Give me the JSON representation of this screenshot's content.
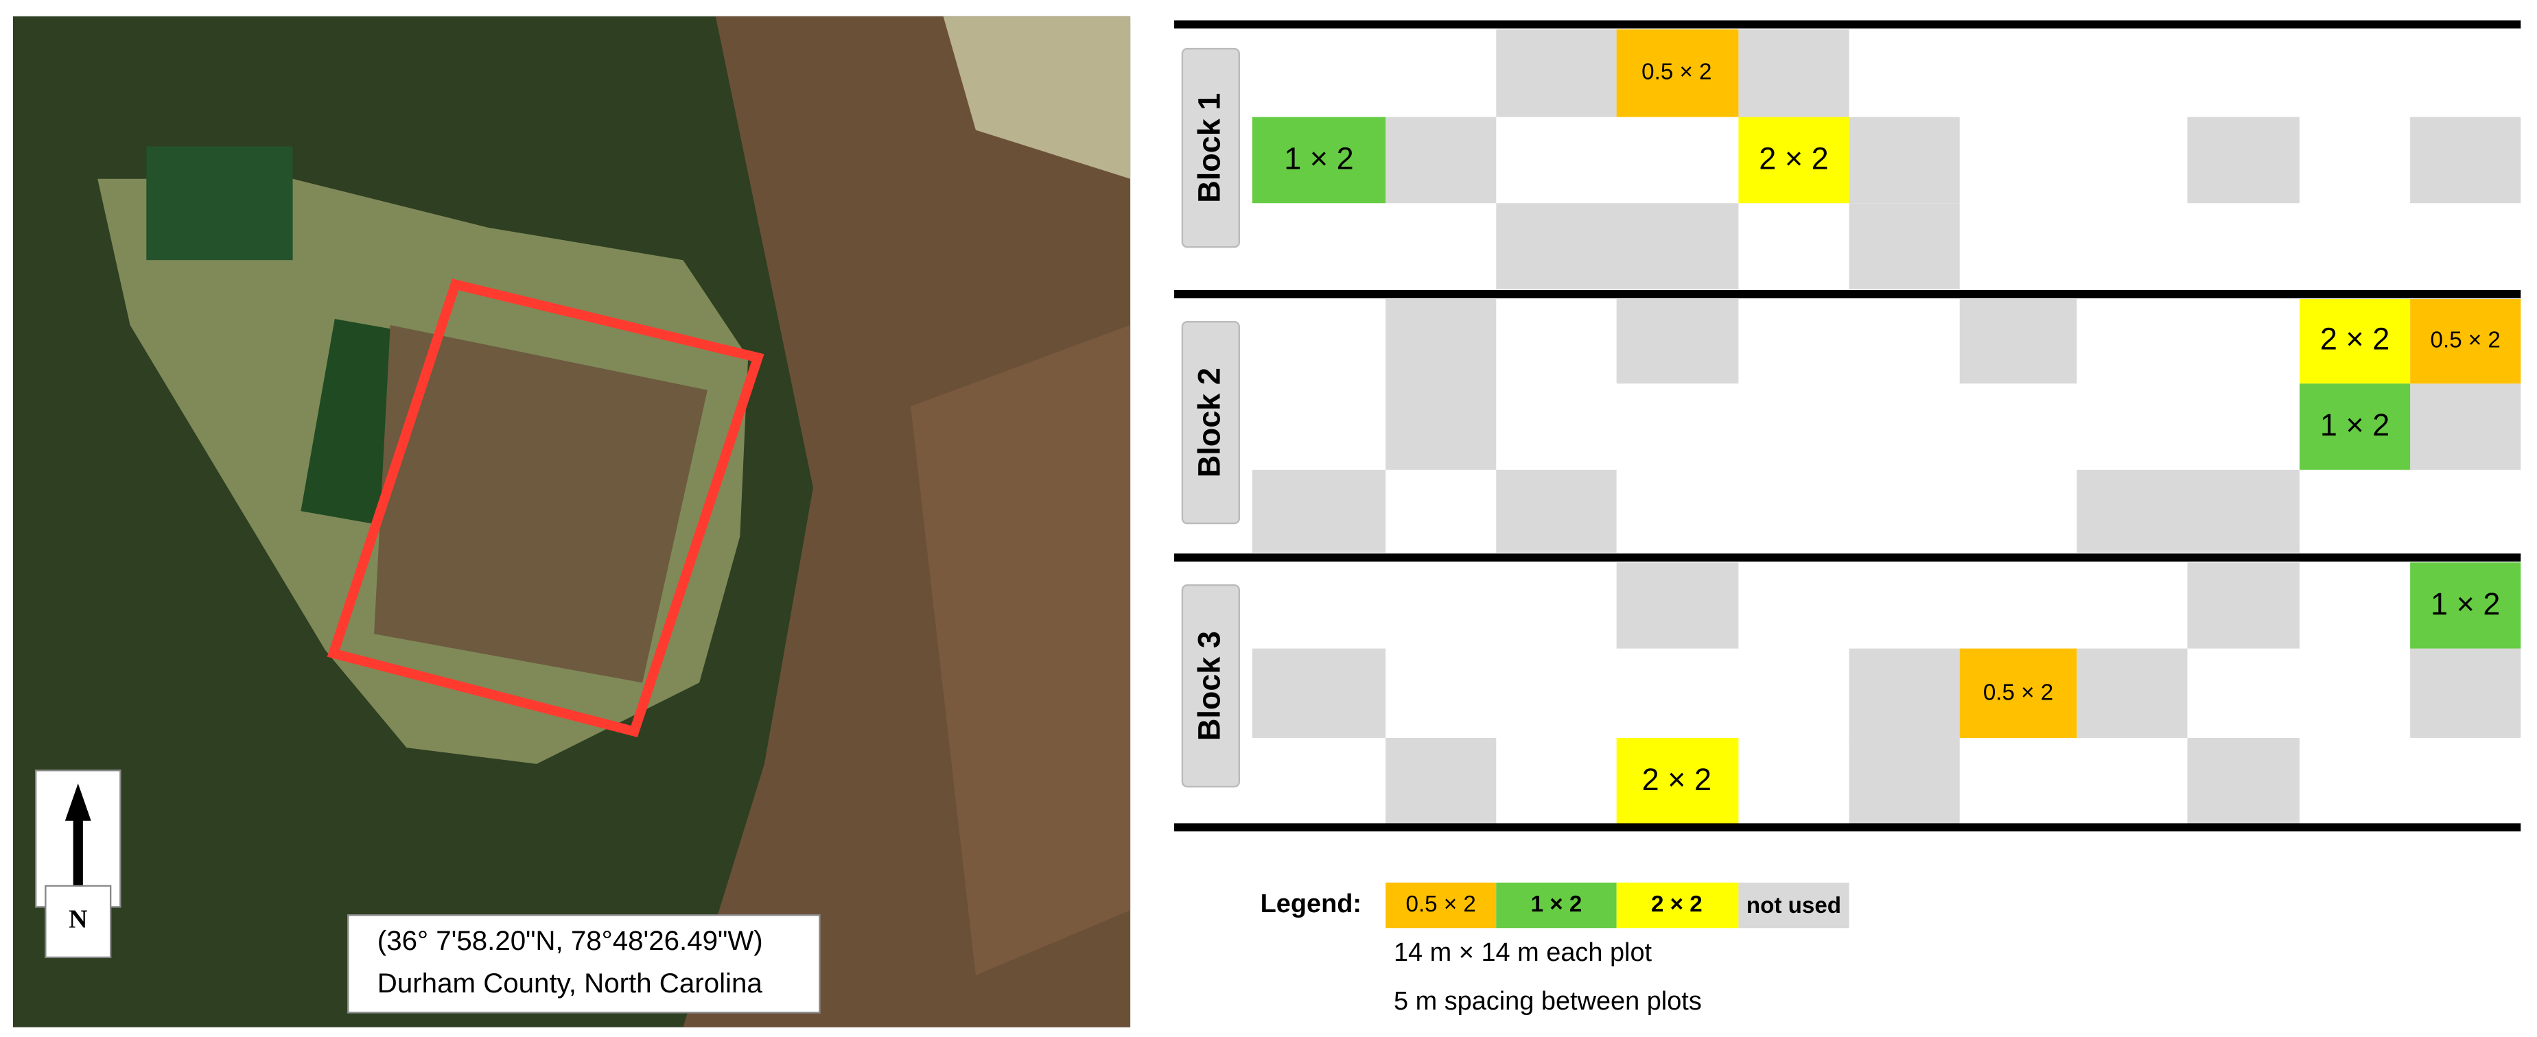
{
  "map": {
    "north": "N",
    "coordinates": "(36° 7'58.20\"N, 78°48'26.49\"W)",
    "location": "Durham County, North Carolina"
  },
  "blocks": [
    {
      "label": "Block 1",
      "plots": [
        "0.5 × 2",
        "1 × 2",
        "2 × 2"
      ]
    },
    {
      "label": "Block 2",
      "plots": [
        "2 × 2",
        "0.5 × 2",
        "1 × 2"
      ]
    },
    {
      "label": "Block 3",
      "plots": [
        "1 × 2",
        "0.5 × 2",
        "2 × 2"
      ]
    }
  ],
  "legend": {
    "title": "Legend:",
    "items": [
      "0.5 × 2",
      "1 × 2",
      "2 × 2",
      "not used"
    ],
    "notes": [
      "14 m × 14 m each plot",
      "5 m spacing between plots"
    ]
  }
}
